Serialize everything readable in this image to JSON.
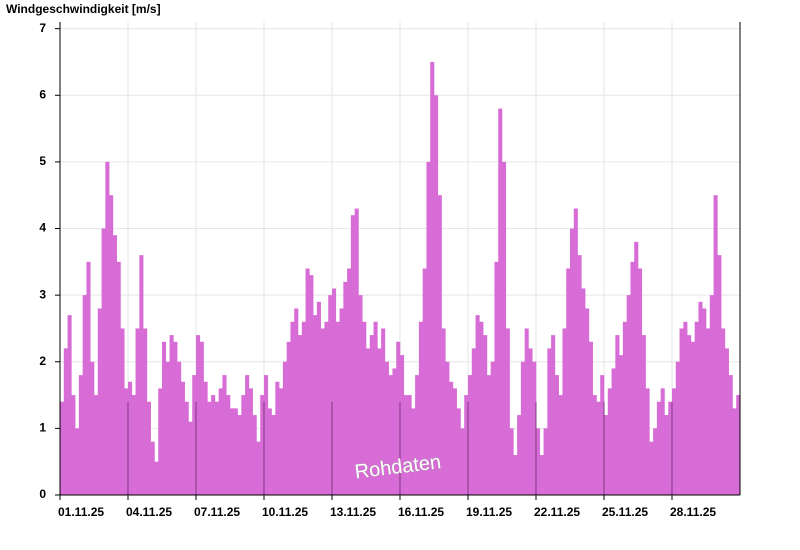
{
  "chart_data": {
    "type": "bar",
    "title": "Windgeschwindigkeit [m/s]",
    "annotation": "Rohdaten",
    "color": "#d86cd6",
    "grid": true,
    "ylim": [
      0,
      7.1
    ],
    "yticks": [
      0,
      1,
      2,
      3,
      4,
      5,
      6,
      7
    ],
    "categories": [
      "01.11.25",
      null,
      null,
      null,
      null,
      null,
      null,
      null,
      null,
      null,
      null,
      null,
      null,
      null,
      null,
      null,
      null,
      null,
      "04.11.25",
      null,
      null,
      null,
      null,
      null,
      null,
      null,
      null,
      null,
      null,
      null,
      null,
      null,
      null,
      null,
      null,
      null,
      "07.11.25",
      null,
      null,
      null,
      null,
      null,
      null,
      null,
      null,
      null,
      null,
      null,
      null,
      null,
      null,
      null,
      null,
      null,
      "10.11.25",
      null,
      null,
      null,
      null,
      null,
      null,
      null,
      null,
      null,
      null,
      null,
      null,
      null,
      null,
      null,
      null,
      null,
      "13.11.25",
      null,
      null,
      null,
      null,
      null,
      null,
      null,
      null,
      null,
      null,
      null,
      null,
      null,
      null,
      null,
      null,
      null,
      "16.11.25",
      null,
      null,
      null,
      null,
      null,
      null,
      null,
      null,
      null,
      null,
      null,
      null,
      null,
      null,
      null,
      null,
      null,
      "19.11.25",
      null,
      null,
      null,
      null,
      null,
      null,
      null,
      null,
      null,
      null,
      null,
      null,
      null,
      null,
      null,
      null,
      null,
      "22.11.25",
      null,
      null,
      null,
      null,
      null,
      null,
      null,
      null,
      null,
      null,
      null,
      null,
      null,
      null,
      null,
      null,
      null,
      "25.11.25",
      null,
      null,
      null,
      null,
      null,
      null,
      null,
      null,
      null,
      null,
      null,
      null,
      null,
      null,
      null,
      null,
      null,
      "28.11.25",
      null,
      null,
      null,
      null,
      null,
      null,
      null,
      null,
      null,
      null,
      null,
      null,
      null,
      null,
      null,
      null,
      null
    ],
    "values": [
      1.4,
      2.2,
      2.7,
      1.5,
      1.0,
      1.8,
      3.0,
      3.5,
      2.0,
      1.5,
      2.8,
      4.0,
      5.0,
      4.5,
      3.9,
      3.5,
      2.5,
      1.6,
      1.7,
      1.5,
      2.5,
      3.6,
      2.5,
      1.4,
      0.8,
      0.5,
      1.6,
      2.3,
      2.0,
      2.4,
      2.3,
      2.0,
      1.7,
      1.4,
      1.1,
      1.8,
      2.4,
      2.3,
      1.7,
      1.4,
      1.5,
      1.4,
      1.6,
      1.8,
      1.5,
      1.3,
      1.3,
      1.2,
      1.5,
      1.8,
      1.6,
      1.2,
      0.8,
      1.5,
      1.8,
      1.3,
      1.2,
      1.7,
      1.6,
      2.0,
      2.3,
      2.6,
      2.8,
      2.4,
      2.6,
      3.4,
      3.3,
      2.7,
      2.9,
      2.5,
      2.6,
      3.0,
      3.1,
      2.6,
      2.8,
      3.2,
      3.4,
      4.2,
      4.3,
      3.0,
      2.6,
      2.2,
      2.4,
      2.6,
      2.2,
      2.5,
      2.0,
      1.8,
      1.9,
      2.3,
      2.1,
      1.5,
      1.5,
      1.3,
      1.8,
      2.6,
      3.4,
      5.0,
      6.5,
      6.0,
      4.5,
      2.5,
      2.0,
      1.7,
      1.6,
      1.3,
      1.0,
      1.5,
      1.8,
      2.2,
      2.7,
      2.6,
      2.4,
      1.8,
      2.0,
      3.5,
      5.8,
      5.0,
      2.5,
      1.0,
      0.6,
      1.2,
      2.0,
      2.5,
      2.2,
      2.0,
      1.0,
      0.6,
      1.0,
      2.2,
      2.4,
      1.8,
      1.5,
      2.5,
      3.4,
      4.0,
      4.3,
      3.6,
      3.1,
      2.8,
      2.3,
      1.5,
      1.4,
      1.8,
      1.2,
      1.6,
      1.9,
      2.4,
      2.1,
      2.6,
      3.0,
      3.5,
      3.8,
      3.4,
      2.4,
      1.6,
      0.8,
      1.0,
      1.4,
      1.6,
      1.2,
      1.4,
      1.6,
      2.0,
      2.5,
      2.6,
      2.4,
      2.3,
      2.6,
      2.9,
      2.8,
      2.5,
      3.0,
      4.5,
      3.6,
      2.5,
      2.2,
      1.8,
      1.3,
      1.5
    ]
  }
}
